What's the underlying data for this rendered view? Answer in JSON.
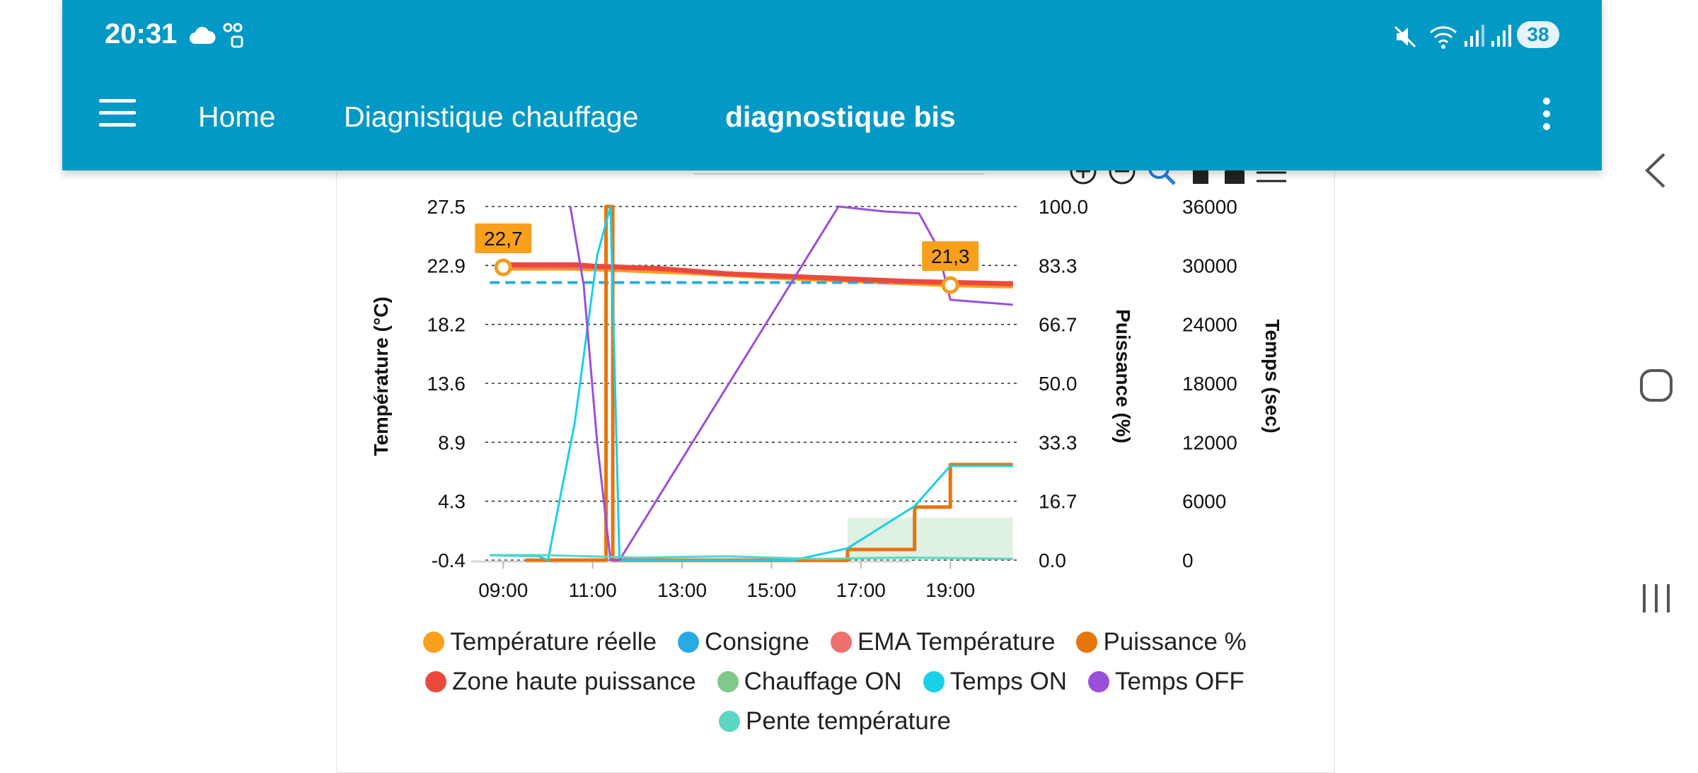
{
  "status_bar": {
    "time": "20:31",
    "battery": "38",
    "icons": [
      "cloud-icon",
      "voicemail-icon",
      "mute-icon",
      "wifi-icon",
      "signal-icon",
      "signal-icon"
    ]
  },
  "app_bar": {
    "menu_icon": "hamburger-icon",
    "tabs": [
      {
        "label": "Home"
      },
      {
        "label": "Diagnistique chauffage"
      },
      {
        "label": "diagnostique bis"
      }
    ],
    "more_icon": "vertical-dots-icon"
  },
  "chart_toolbar_icons": [
    "zoom-in-icon",
    "zoom-out-icon",
    "zoom-select-icon",
    "pan-icon",
    "home-icon",
    "menu-icon"
  ],
  "chart_data": {
    "type": "line",
    "xlabel": "",
    "x_ticks": [
      "09:00",
      "11:00",
      "13:00",
      "15:00",
      "17:00",
      "19:00"
    ],
    "axes": {
      "left": {
        "label": "Température (°C)",
        "ticks": [
          "27.5",
          "22.9",
          "18.2",
          "13.6",
          "8.9",
          "4.3",
          "-0.4"
        ],
        "range": [
          -0.4,
          27.5
        ]
      },
      "right1": {
        "label": "Puissance (%)",
        "ticks": [
          "100.0",
          "83.3",
          "66.7",
          "50.0",
          "33.3",
          "16.7",
          "0.0"
        ],
        "range": [
          0,
          100
        ]
      },
      "right2": {
        "label": "Temps (sec)",
        "ticks": [
          "36000",
          "30000",
          "24000",
          "18000",
          "12000",
          "6000",
          "0"
        ],
        "range": [
          0,
          36000
        ]
      }
    },
    "grid": true,
    "legend_position": "bottom",
    "annotations": [
      {
        "text": "22,7",
        "x": 9.0,
        "y": 22.7
      },
      {
        "text": "21,3",
        "x": 19.0,
        "y": 21.3
      }
    ],
    "series": [
      {
        "name": "Température réelle",
        "color": "#f8a01c",
        "axis": "left",
        "points": [
          [
            8.9,
            22.6
          ],
          [
            10.5,
            22.6
          ],
          [
            11.5,
            22.5
          ],
          [
            13.0,
            22.3
          ],
          [
            15.0,
            21.9
          ],
          [
            17.0,
            21.6
          ],
          [
            19.0,
            21.3
          ],
          [
            20.4,
            21.2
          ]
        ]
      },
      {
        "name": "Consigne",
        "color": "#2aaae2",
        "axis": "left",
        "points": [
          [
            8.7,
            21.5
          ],
          [
            20.4,
            21.5
          ]
        ]
      },
      {
        "name": "EMA Température",
        "color": "#f07070",
        "axis": "left",
        "points": [
          [
            8.9,
            22.7
          ],
          [
            11.5,
            22.6
          ],
          [
            13.0,
            22.4
          ],
          [
            15.0,
            22.0
          ],
          [
            17.0,
            21.7
          ],
          [
            19.0,
            21.4
          ],
          [
            20.4,
            21.3
          ]
        ]
      },
      {
        "name": "Puissance %",
        "color": "#e8740c",
        "axis": "right1",
        "points": [
          [
            9.5,
            0
          ],
          [
            11.3,
            0
          ],
          [
            11.3,
            100
          ],
          [
            11.45,
            100
          ],
          [
            11.45,
            0
          ],
          [
            16.7,
            0
          ],
          [
            16.7,
            3
          ],
          [
            18.2,
            3
          ],
          [
            18.2,
            15
          ],
          [
            19.0,
            15
          ],
          [
            19.0,
            27
          ],
          [
            20.4,
            27
          ]
        ]
      },
      {
        "name": "Zone haute puissance",
        "color": "#ea4a3c",
        "axis": "left",
        "points": [
          [
            8.9,
            22.9
          ],
          [
            10.6,
            22.9
          ],
          [
            11.0,
            22.8
          ],
          [
            12.5,
            22.6
          ],
          [
            14.0,
            22.2
          ],
          [
            16.0,
            21.9
          ],
          [
            18.0,
            21.6
          ],
          [
            20.4,
            21.4
          ]
        ]
      },
      {
        "name": "Chauffage ON",
        "color": "#7fc98a",
        "axis": "right1",
        "area": true,
        "points": [
          [
            16.7,
            12
          ],
          [
            20.4,
            12
          ]
        ]
      },
      {
        "name": "Temps ON",
        "color": "#18d0e8",
        "axis": "right2",
        "points": [
          [
            8.7,
            500
          ],
          [
            9.8,
            400
          ],
          [
            10.0,
            0
          ],
          [
            10.6,
            14000
          ],
          [
            11.1,
            31000
          ],
          [
            11.4,
            36000
          ],
          [
            11.6,
            0
          ],
          [
            15.5,
            0
          ],
          [
            16.7,
            1200
          ],
          [
            18.2,
            5500
          ],
          [
            19.0,
            9600
          ],
          [
            20.4,
            9600
          ]
        ]
      },
      {
        "name": "Temps OFF",
        "color": "#9a4fdb",
        "axis": "right2",
        "points": [
          [
            10.5,
            36000
          ],
          [
            10.8,
            28000
          ],
          [
            11.1,
            12000
          ],
          [
            11.4,
            0
          ],
          [
            11.6,
            0
          ],
          [
            16.5,
            36000
          ],
          [
            17.5,
            35500
          ],
          [
            18.3,
            35300
          ],
          [
            18.7,
            32000
          ],
          [
            19.0,
            26500
          ],
          [
            20.4,
            26000
          ]
        ]
      },
      {
        "name": "Pente température",
        "color": "#5cd6c4",
        "axis": "left",
        "points": [
          [
            8.7,
            0.0
          ],
          [
            9.8,
            0.0
          ],
          [
            12.0,
            -0.2
          ],
          [
            14.0,
            -0.1
          ],
          [
            16.0,
            -0.3
          ],
          [
            18.0,
            -0.2
          ],
          [
            20.4,
            -0.3
          ]
        ]
      }
    ]
  },
  "legend_rows": [
    [
      {
        "label": "Température réelle",
        "color": "#f8a01c"
      },
      {
        "label": "Consigne",
        "color": "#2aaae2"
      },
      {
        "label": "EMA Température",
        "color": "#f07070"
      },
      {
        "label": "Puissance %",
        "color": "#e8740c"
      }
    ],
    [
      {
        "label": "Zone haute puissance",
        "color": "#ea4a3c"
      },
      {
        "label": "Chauffage ON",
        "color": "#7fc98a"
      },
      {
        "label": "Temps ON",
        "color": "#18d0e8"
      },
      {
        "label": "Temps OFF",
        "color": "#9a4fdb"
      }
    ],
    [
      {
        "label": "Pente température",
        "color": "#5cd6c4"
      }
    ]
  ],
  "nav_bar": {
    "icons": [
      "back-icon",
      "home-icon",
      "recents-icon"
    ]
  }
}
